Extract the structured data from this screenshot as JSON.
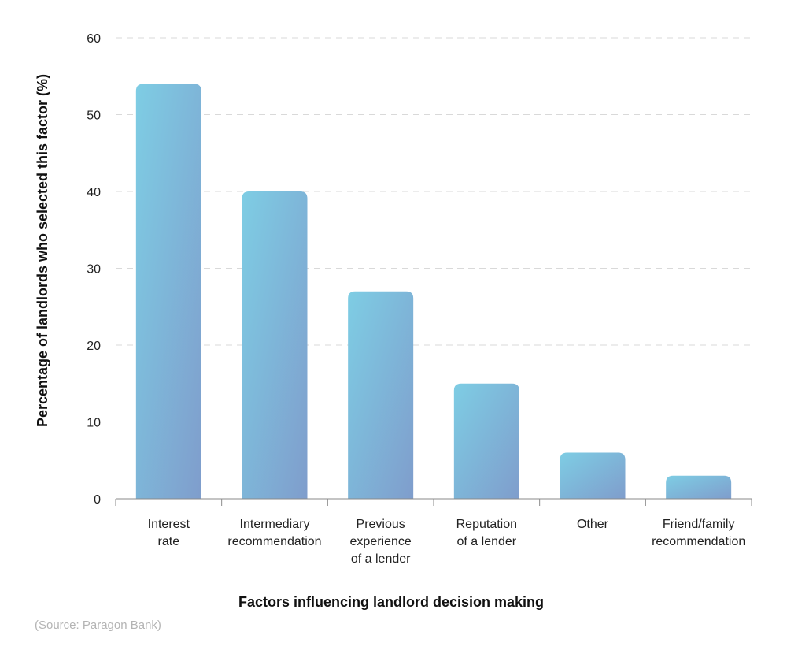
{
  "chart_data": {
    "type": "bar",
    "categories": [
      [
        "Interest",
        "rate"
      ],
      [
        "Intermediary",
        "recommendation"
      ],
      [
        "Previous",
        "experience",
        "of a lender"
      ],
      [
        "Reputation",
        "of a lender"
      ],
      [
        "Other"
      ],
      [
        "Friend/family",
        "recommendation"
      ]
    ],
    "values": [
      54,
      40,
      27,
      15,
      6,
      3
    ],
    "xlabel": "Factors influencing landlord decision making",
    "ylabel": "Percentage of landlords who selected this factor (%)",
    "ylim": [
      0,
      60
    ],
    "yticks": [
      0,
      10,
      20,
      30,
      40,
      50,
      60
    ],
    "grid": true,
    "colors": {
      "bar_top": "#7ecde4",
      "bar_bottom": "#7f9dcc",
      "grid": "#d9d9d9",
      "axis": "#8a8a8a"
    }
  },
  "source": "(Source: Paragon Bank)"
}
